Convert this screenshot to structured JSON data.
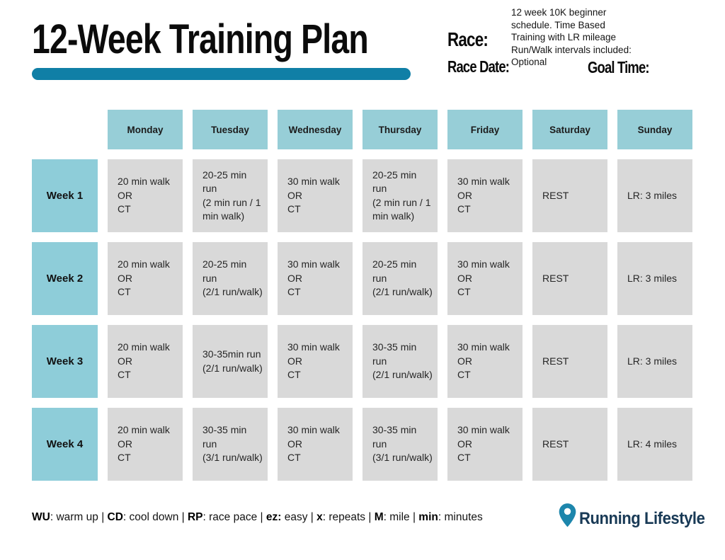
{
  "header": {
    "title": "12-Week Training Plan",
    "race_label": "Race:",
    "race_date_label": "Race Date:",
    "goal_time_label": "Goal Time:",
    "description": "12 week 10K beginner\nschedule. Time Based\nTraining with LR mileage\nRun/Walk intervals included:\nOptional"
  },
  "table": {
    "day_headers": [
      "Monday",
      "Tuesday",
      "Wednesday",
      "Thursday",
      "Friday",
      "Saturday",
      "Sunday"
    ],
    "weeks": [
      {
        "label": "Week 1",
        "cells": [
          "20 min walk\nOR\nCT",
          "20-25 min run\n(2 min run / 1\nmin walk)",
          "30 min walk\nOR\nCT",
          "20-25 min run\n(2 min run / 1\nmin walk)",
          "30 min walk\nOR\nCT",
          "REST",
          "LR: 3 miles"
        ]
      },
      {
        "label": "Week 2",
        "cells": [
          "20 min walk\nOR\nCT",
          "20-25 min run\n(2/1 run/walk)",
          "30 min walk\nOR\nCT",
          "20-25 min run\n(2/1 run/walk)",
          "30 min walk\nOR\nCT",
          "REST",
          "LR: 3 miles"
        ]
      },
      {
        "label": "Week 3",
        "cells": [
          "20 min walk\nOR\nCT",
          "30-35min run\n(2/1 run/walk)",
          "30 min walk\nOR\nCT",
          "30-35 min run\n(2/1 run/walk)",
          "30 min walk\nOR\nCT",
          "REST",
          "LR: 3 miles"
        ]
      },
      {
        "label": "Week 4",
        "cells": [
          "20 min walk\nOR\nCT",
          "30-35 min run\n(3/1 run/walk)",
          "30 min walk\nOR\nCT",
          "30-35 min run\n(3/1 run/walk)",
          "30 min walk\nOR\nCT",
          "REST",
          "LR: 4 miles"
        ]
      }
    ]
  },
  "legend": {
    "separator": " | ",
    "items": [
      {
        "abbr": "WU",
        "rest": ": warm up"
      },
      {
        "abbr": "CD",
        "rest": ": cool down"
      },
      {
        "abbr": "RP",
        "rest": ": race pace"
      },
      {
        "abbr": "ez:",
        "rest": " easy"
      },
      {
        "abbr": "x",
        "rest": ": repeats"
      },
      {
        "abbr": "M",
        "rest": ": mile"
      },
      {
        "abbr": "min",
        "rest": ": minutes"
      }
    ]
  },
  "logo": {
    "icon": "map-pin-icon",
    "text": "Running Lifestyle"
  },
  "colors": {
    "accent_teal": "#107fa6",
    "day_header_blue": "#97ced7",
    "week_label_blue": "#8ecdd9",
    "cell_gray": "#d9d9d9",
    "logo_navy": "#193a56",
    "pin_blue": "#1d86ac"
  }
}
